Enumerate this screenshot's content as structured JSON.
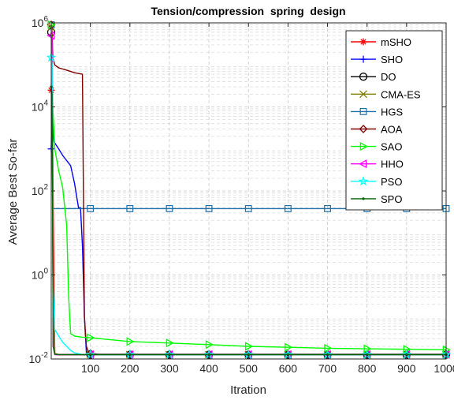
{
  "chart_data": {
    "type": "line",
    "title": "Tension/compression  spring  design",
    "xlabel": "Itration",
    "ylabel": "Average Best So-far",
    "xlim": [
      1,
      1000
    ],
    "ylim": [
      0.01,
      1000000
    ],
    "yscale": "log",
    "x_ticks": [
      100,
      200,
      300,
      400,
      500,
      600,
      700,
      800,
      900,
      1000
    ],
    "y_ticks": [
      {
        "value": 0.01,
        "base": "10",
        "exp": "-2"
      },
      {
        "value": 1,
        "base": "10",
        "exp": "0"
      },
      {
        "value": 100,
        "base": "10",
        "exp": "2"
      },
      {
        "value": 10000,
        "base": "10",
        "exp": "4"
      },
      {
        "value": 1000000,
        "base": "10",
        "exp": "6"
      }
    ],
    "grid": true,
    "legend_position": "top-right",
    "series": [
      {
        "name": "mSHO",
        "color": "#ff0000",
        "marker": "asterisk",
        "x": [
          1,
          3,
          6,
          10,
          20,
          60,
          100,
          1000
        ],
        "y": [
          25000,
          400000,
          50,
          0.013,
          0.0127,
          0.0127,
          0.0127,
          0.0127
        ]
      },
      {
        "name": "SHO",
        "color": "#0000ff",
        "marker": "plus",
        "x": [
          1,
          3,
          6,
          8,
          12,
          20,
          30,
          50,
          60,
          70,
          75,
          80,
          85,
          90,
          95,
          100,
          1000
        ],
        "y": [
          1000,
          30000,
          3000,
          1500,
          1300,
          1000,
          700,
          400,
          150,
          40,
          40,
          5,
          0.1,
          0.014,
          0.0128,
          0.0127,
          0.0127
        ]
      },
      {
        "name": "DO",
        "color": "#000000",
        "marker": "circle",
        "x": [
          1,
          3,
          6,
          10,
          20,
          100,
          1000
        ],
        "y": [
          600000,
          400000,
          0.02,
          0.0128,
          0.0127,
          0.0127,
          0.0127
        ]
      },
      {
        "name": "CMA-ES",
        "color": "#808000",
        "marker": "x",
        "x": [
          1,
          3,
          6,
          10,
          20,
          100,
          1000
        ],
        "y": [
          800000,
          600000,
          0.5,
          0.0135,
          0.0128,
          0.0127,
          0.0127
        ]
      },
      {
        "name": "HGS",
        "color": "#1f6fa8",
        "marker": "square",
        "x": [
          1,
          2,
          3,
          4,
          5,
          6,
          100,
          1000
        ],
        "y": [
          900000,
          300000,
          10000,
          300,
          50,
          38,
          38,
          38
        ]
      },
      {
        "name": "AOA",
        "color": "#800000",
        "marker": "diamond",
        "x": [
          1,
          3,
          5,
          10,
          20,
          40,
          60,
          80,
          85,
          90,
          95,
          100,
          120,
          1000
        ],
        "y": [
          900000,
          600000,
          150000,
          100000,
          85000,
          75000,
          65000,
          60000,
          0.1,
          0.02,
          0.015,
          0.0135,
          0.013,
          0.013
        ]
      },
      {
        "name": "SAO",
        "color": "#00ff00",
        "marker": "triangle-right",
        "x": [
          1,
          3,
          5,
          10,
          20,
          30,
          40,
          45,
          50,
          60,
          80,
          100,
          200,
          300,
          400,
          500,
          600,
          700,
          800,
          900,
          1000
        ],
        "y": [
          900000,
          300000,
          10000,
          1000,
          300,
          120,
          15,
          0.3,
          0.04,
          0.035,
          0.033,
          0.032,
          0.026,
          0.024,
          0.022,
          0.02,
          0.019,
          0.018,
          0.0175,
          0.017,
          0.0165
        ]
      },
      {
        "name": "HHO",
        "color": "#ff00ff",
        "marker": "triangle-left",
        "x": [
          1,
          3,
          6,
          10,
          20,
          100,
          1000
        ],
        "y": [
          500000,
          400000,
          0.02,
          0.0127,
          0.0127,
          0.0127,
          0.0127
        ]
      },
      {
        "name": "PSO",
        "color": "#00ffff",
        "marker": "star",
        "x": [
          1,
          3,
          6,
          10,
          20,
          30,
          40,
          50,
          60,
          80,
          100,
          1000
        ],
        "y": [
          150000,
          100000,
          0.5,
          0.05,
          0.035,
          0.025,
          0.02,
          0.016,
          0.014,
          0.0128,
          0.0127,
          0.0127
        ]
      },
      {
        "name": "SPO",
        "color": "#006400",
        "marker": "dot",
        "x": [
          1,
          3,
          6,
          10,
          20,
          100,
          1000
        ],
        "y": [
          30000,
          20000,
          0.02,
          0.013,
          0.0127,
          0.0127,
          0.0127
        ]
      }
    ]
  }
}
